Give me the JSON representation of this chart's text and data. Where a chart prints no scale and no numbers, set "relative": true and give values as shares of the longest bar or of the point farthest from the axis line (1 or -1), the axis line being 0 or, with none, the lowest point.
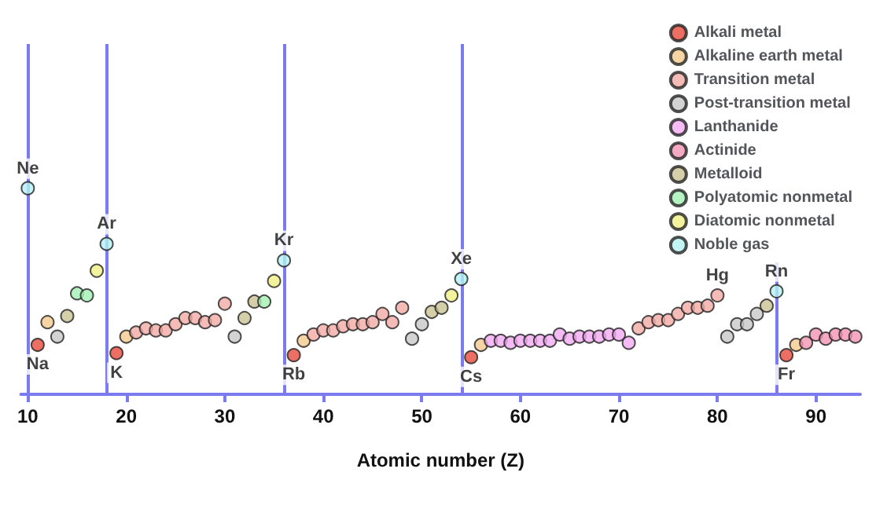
{
  "chart_data": {
    "type": "scatter",
    "relative": true,
    "xlabel": "Atomic number (Z)",
    "xlim": [
      9.3,
      94.5
    ],
    "xticks": [
      10,
      20,
      30,
      40,
      50,
      60,
      70,
      80,
      90
    ],
    "legend": "top right",
    "marker": "circle",
    "grid": false,
    "series": [
      {
        "name": "Alkali metal",
        "color": "#e84a3c",
        "x": [
          11,
          19,
          37,
          55,
          87
        ],
        "values": [
          0.24,
          0.2,
          0.19,
          0.18,
          0.19
        ]
      },
      {
        "name": "Alkaline earth metal",
        "color": "#f5c98c",
        "x": [
          12,
          20,
          38,
          56,
          88
        ],
        "values": [
          0.35,
          0.28,
          0.26,
          0.24,
          0.24
        ]
      },
      {
        "name": "Transition metal",
        "color": "#f2aaa4",
        "x": [
          21,
          22,
          23,
          24,
          25,
          26,
          27,
          28,
          29,
          30,
          39,
          40,
          41,
          42,
          43,
          44,
          45,
          46,
          47,
          48,
          72,
          73,
          74,
          75,
          76,
          77,
          78,
          79,
          80
        ],
        "values": [
          0.3,
          0.32,
          0.31,
          0.31,
          0.34,
          0.37,
          0.37,
          0.35,
          0.36,
          0.44,
          0.29,
          0.31,
          0.31,
          0.33,
          0.34,
          0.34,
          0.35,
          0.39,
          0.35,
          0.42,
          0.32,
          0.35,
          0.36,
          0.36,
          0.39,
          0.42,
          0.42,
          0.43,
          0.48
        ]
      },
      {
        "name": "Post-transition metal",
        "color": "#c8c8c8",
        "x": [
          13,
          31,
          49,
          50,
          81,
          82,
          83,
          84
        ],
        "values": [
          0.28,
          0.28,
          0.27,
          0.34,
          0.28,
          0.34,
          0.34,
          0.39
        ]
      },
      {
        "name": "Lanthanide",
        "color": "#f2aaf2",
        "x": [
          57,
          58,
          59,
          60,
          61,
          62,
          63,
          64,
          65,
          66,
          67,
          68,
          69,
          70,
          71
        ],
        "values": [
          0.26,
          0.26,
          0.25,
          0.26,
          0.26,
          0.26,
          0.26,
          0.29,
          0.27,
          0.28,
          0.28,
          0.28,
          0.29,
          0.29,
          0.25
        ]
      },
      {
        "name": "Actinide",
        "color": "#f294b4",
        "x": [
          89,
          90,
          91,
          92,
          93,
          94
        ],
        "values": [
          0.25,
          0.29,
          0.27,
          0.29,
          0.29,
          0.28
        ]
      },
      {
        "name": "Metalloid",
        "color": "#cac394",
        "x": [
          14,
          32,
          33,
          51,
          52,
          85
        ],
        "values": [
          0.38,
          0.37,
          0.45,
          0.4,
          0.42,
          0.43
        ]
      },
      {
        "name": "Polyatomic nonmetal",
        "color": "#a4f0b4",
        "x": [
          15,
          16,
          34
        ],
        "values": [
          0.49,
          0.48,
          0.45
        ]
      },
      {
        "name": "Diatomic nonmetal",
        "color": "#f0f084",
        "x": [
          17,
          35,
          53
        ],
        "values": [
          0.6,
          0.55,
          0.48
        ]
      },
      {
        "name": "Noble gas",
        "color": "#b4f2f2",
        "x": [
          10,
          18,
          36,
          54,
          86
        ],
        "values": [
          1,
          0.73,
          0.65,
          0.56,
          0.5
        ]
      }
    ],
    "ref_lines": [
      {
        "axis": "x",
        "value": 10,
        "color": "#7b7bef"
      },
      {
        "axis": "x",
        "value": 18,
        "color": "#7b7bef"
      },
      {
        "axis": "x",
        "value": 36,
        "color": "#7b7bef"
      },
      {
        "axis": "x",
        "value": 54,
        "color": "#7b7bef"
      },
      {
        "axis": "x",
        "value": 86,
        "color": "#7b7bef"
      }
    ],
    "annotations": [
      {
        "text": "Ne",
        "x": 10,
        "y": 1
      },
      {
        "text": "Na",
        "x": 11,
        "y": 0.24
      },
      {
        "text": "Ar",
        "x": 18,
        "y": 0.73
      },
      {
        "text": "K",
        "x": 19,
        "y": 0.2
      },
      {
        "text": "Kr",
        "x": 36,
        "y": 0.65
      },
      {
        "text": "Rb",
        "x": 37,
        "y": 0.19
      },
      {
        "text": "Xe",
        "x": 54,
        "y": 0.56
      },
      {
        "text": "Cs",
        "x": 55,
        "y": 0.18
      },
      {
        "text": "Hg",
        "x": 80,
        "y": 0.48
      },
      {
        "text": "Rn",
        "x": 86,
        "y": 0.5
      },
      {
        "text": "Fr",
        "x": 87,
        "y": 0.19
      }
    ]
  }
}
